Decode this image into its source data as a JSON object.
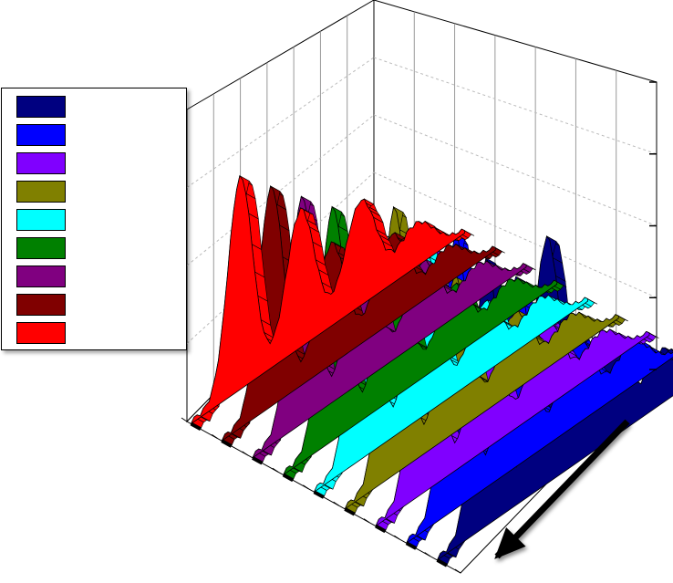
{
  "chart_data": {
    "type": "area",
    "view": "3d-waterfall",
    "title": "",
    "xlabel": "",
    "ylabel": "",
    "zlabel": "",
    "grid": true,
    "legend_placement": "left",
    "series": [
      {
        "name": "",
        "color": "#000080",
        "peaks": [
          0.78,
          0.72,
          0.3,
          0.15
        ]
      },
      {
        "name": "",
        "color": "#0000FF",
        "peaks": [
          0.8,
          0.55,
          0.25,
          0.12
        ]
      },
      {
        "name": "",
        "color": "#8000FF",
        "peaks": [
          0.78,
          0.4,
          0.25,
          0.1
        ]
      },
      {
        "name": "",
        "color": "#808000",
        "peaks": [
          0.78,
          0.45,
          0.22,
          0.1
        ]
      },
      {
        "name": "",
        "color": "#00FFFF",
        "peaks": [
          0.72,
          0.5,
          0.2,
          0.1
        ]
      },
      {
        "name": "",
        "color": "#008000",
        "peaks": [
          0.68,
          0.45,
          0.2,
          0.1
        ]
      },
      {
        "name": "",
        "color": "#800080",
        "peaks": [
          0.66,
          0.42,
          0.22,
          0.1
        ]
      },
      {
        "name": "",
        "color": "#800000",
        "peaks": [
          0.64,
          0.35,
          0.25,
          0.1
        ]
      },
      {
        "name": "",
        "color": "#FF0000",
        "peaks": [
          0.62,
          0.4,
          0.3,
          0.12
        ]
      }
    ],
    "annotation": "direction-arrow"
  }
}
